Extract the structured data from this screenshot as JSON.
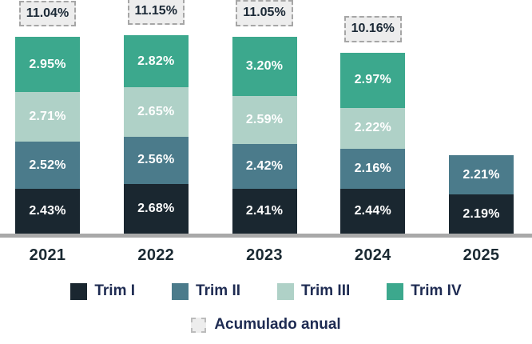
{
  "chart_data": {
    "type": "bar",
    "stacked": true,
    "title": "",
    "xlabel": "",
    "ylabel": "",
    "grid": false,
    "legend_position": "bottom",
    "value_suffix": "%",
    "categories": [
      "2021",
      "2022",
      "2023",
      "2024",
      "2025"
    ],
    "series": [
      {
        "name": "Trim I",
        "color": "#1a2730",
        "values": [
          2.43,
          2.68,
          2.41,
          2.44,
          2.19
        ]
      },
      {
        "name": "Trim II",
        "color": "#4b7b8b",
        "values": [
          2.52,
          2.56,
          2.42,
          2.16,
          2.21
        ]
      },
      {
        "name": "Trim III",
        "color": "#afd1c7",
        "values": [
          2.71,
          2.65,
          2.59,
          2.22,
          null
        ]
      },
      {
        "name": "Trim IV",
        "color": "#3ca88d",
        "values": [
          2.95,
          2.82,
          3.2,
          2.97,
          null
        ]
      }
    ],
    "annual_totals": {
      "legend_label": "Acumulado anual",
      "values": [
        "11.04%",
        "11.15%",
        "11.05%",
        "10.16%",
        null
      ],
      "box_fill": "#ededed",
      "box_border": "#a6a6a6"
    },
    "axis_line_color": "#a9a9a9"
  },
  "colors": {
    "year_label_text": "#1b2a33",
    "legend_text": "#1e2b52",
    "segment_value_text": "#ffffff",
    "total_box_text": "#1b2936"
  }
}
